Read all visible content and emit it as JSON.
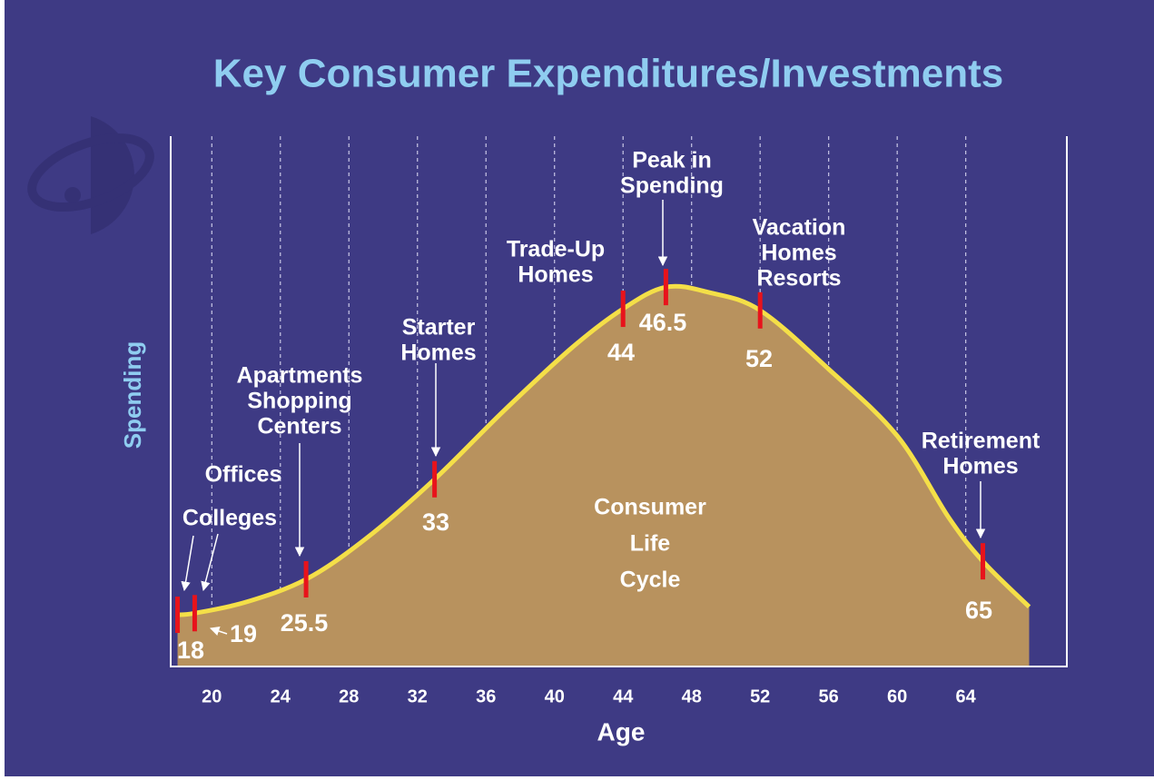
{
  "chart_data": {
    "type": "area",
    "title": "Key Consumer Expenditures/Investments",
    "xlabel": "Age",
    "ylabel": "Spending",
    "center_text": [
      "Consumer",
      "Life",
      "Cycle"
    ],
    "x": [
      18,
      19,
      22,
      25.5,
      29,
      33,
      37,
      41,
      44,
      46.5,
      49,
      52,
      56,
      60,
      63,
      65,
      67.7
    ],
    "values": [
      9.6,
      9.9,
      12,
      16.3,
      24,
      35.2,
      48,
      60,
      67.4,
      71.5,
      70.5,
      67.1,
      56,
      43.4,
      28,
      19.7,
      11.1
    ],
    "fill_color": "#b8925e",
    "line_color": "#f4df48",
    "marker_color": "#e8131b",
    "xlim": [
      17.6,
      69.9
    ],
    "ylim": [
      0,
      100
    ],
    "xticks": [
      20,
      24,
      28,
      32,
      36,
      40,
      44,
      48,
      52,
      56,
      60,
      64
    ],
    "grid": true,
    "milestones": [
      {
        "age": 18,
        "label": [
          "Colleges"
        ]
      },
      {
        "age": 19,
        "label": [
          "Offices"
        ]
      },
      {
        "age": 25.5,
        "label": [
          "Apartments",
          "Shopping",
          "Centers"
        ]
      },
      {
        "age": 33,
        "label": [
          "Starter",
          "Homes"
        ]
      },
      {
        "age": 44,
        "label": [
          "Trade-Up",
          "Homes"
        ]
      },
      {
        "age": 46.5,
        "label": [
          "Peak in",
          "Spending"
        ]
      },
      {
        "age": 52,
        "label": [
          "Vacation",
          "Homes",
          "Resorts"
        ]
      },
      {
        "age": 65,
        "label": [
          "Retirement",
          "Homes"
        ]
      }
    ]
  }
}
